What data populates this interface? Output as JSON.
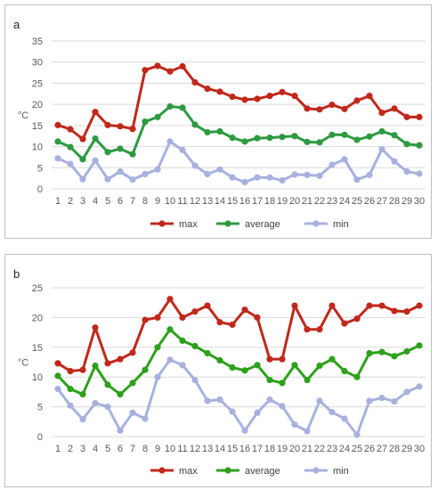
{
  "chart_data": [
    {
      "panel": "a",
      "type": "line",
      "ylabel": "°C",
      "ylim": [
        0,
        35
      ],
      "yticks": [
        0,
        5,
        10,
        15,
        20,
        25,
        30,
        35
      ],
      "categories": [
        "1",
        "2",
        "3",
        "4",
        "5",
        "6",
        "7",
        "8",
        "9",
        "10",
        "11",
        "12",
        "13",
        "14",
        "15",
        "16",
        "17",
        "18",
        "19",
        "20",
        "21",
        "22",
        "23",
        "24",
        "25",
        "26",
        "27",
        "28",
        "29",
        "30"
      ],
      "grid": "horizontal",
      "legend": "bottom",
      "series": [
        {
          "name": "max",
          "color": "#c0281c",
          "values": [
            15.1,
            14.1,
            11.8,
            18.2,
            15.1,
            14.8,
            14.2,
            28.1,
            29.1,
            27.8,
            29.0,
            25.2,
            23.7,
            23.0,
            21.8,
            21.1,
            21.3,
            22.0,
            22.9,
            22.0,
            19.0,
            18.8,
            19.9,
            18.9,
            20.9,
            22.0,
            18.0,
            19.0,
            17.0,
            17.0
          ]
        },
        {
          "name": "average",
          "color": "#2d9a41",
          "values": [
            11.2,
            9.9,
            7.0,
            11.9,
            8.7,
            9.5,
            8.2,
            15.9,
            17.0,
            19.5,
            19.2,
            15.2,
            13.4,
            13.6,
            12.1,
            11.2,
            12.0,
            12.1,
            12.3,
            12.5,
            11.1,
            11.0,
            12.8,
            12.8,
            11.6,
            12.4,
            13.6,
            12.7,
            10.6,
            10.3
          ]
        },
        {
          "name": "min",
          "color": "#a8b1de",
          "values": [
            7.2,
            5.9,
            2.3,
            6.7,
            2.3,
            4.1,
            2.2,
            3.5,
            4.6,
            11.2,
            9.2,
            5.5,
            3.5,
            4.6,
            2.7,
            1.6,
            2.7,
            2.7,
            2.0,
            3.4,
            3.3,
            3.1,
            5.7,
            7.0,
            2.2,
            3.3,
            9.4,
            6.5,
            4.1,
            3.6
          ]
        }
      ]
    },
    {
      "panel": "b",
      "type": "line",
      "ylabel": "°C",
      "ylim": [
        0,
        25
      ],
      "yticks": [
        0,
        5,
        10,
        15,
        20,
        25
      ],
      "categories": [
        "1",
        "2",
        "3",
        "4",
        "5",
        "6",
        "7",
        "8",
        "9",
        "10",
        "11",
        "12",
        "13",
        "14",
        "15",
        "16",
        "17",
        "18",
        "19",
        "20",
        "21",
        "22",
        "23",
        "24",
        "25",
        "26",
        "27",
        "28",
        "29",
        "30"
      ],
      "grid": "horizontal",
      "legend": "bottom",
      "series": [
        {
          "name": "max",
          "color": "#c0281c",
          "values": [
            12.3,
            11.0,
            11.2,
            18.3,
            12.3,
            13.0,
            14.1,
            19.6,
            20.0,
            23.1,
            20.0,
            21.0,
            22.0,
            19.2,
            18.8,
            21.3,
            20.0,
            13.0,
            13.0,
            22.0,
            18.0,
            18.0,
            22.0,
            19.0,
            19.8,
            22.0,
            22.0,
            21.1,
            21.0,
            22.0
          ]
        },
        {
          "name": "average",
          "color": "#2ea01c",
          "values": [
            10.2,
            8.0,
            7.1,
            11.9,
            8.7,
            7.1,
            9.0,
            11.2,
            15.0,
            18.0,
            16.1,
            15.2,
            14.0,
            12.8,
            11.6,
            11.1,
            12.0,
            9.5,
            9.0,
            12.0,
            9.5,
            11.9,
            13.0,
            11.0,
            10.0,
            14.0,
            14.2,
            13.5,
            14.3,
            15.3
          ]
        },
        {
          "name": "min",
          "color": "#a8b1de",
          "values": [
            8.0,
            5.2,
            2.9,
            5.6,
            5.0,
            1.0,
            4.0,
            3.0,
            10.0,
            12.9,
            12.0,
            9.5,
            6.0,
            6.2,
            4.2,
            1.0,
            4.0,
            6.2,
            5.1,
            2.0,
            0.9,
            6.0,
            4.1,
            3.0,
            0.3,
            6.0,
            6.5,
            5.9,
            7.5,
            8.4
          ]
        }
      ]
    }
  ],
  "panels": {
    "a": {
      "letter": "a"
    },
    "b": {
      "letter": "b"
    }
  }
}
